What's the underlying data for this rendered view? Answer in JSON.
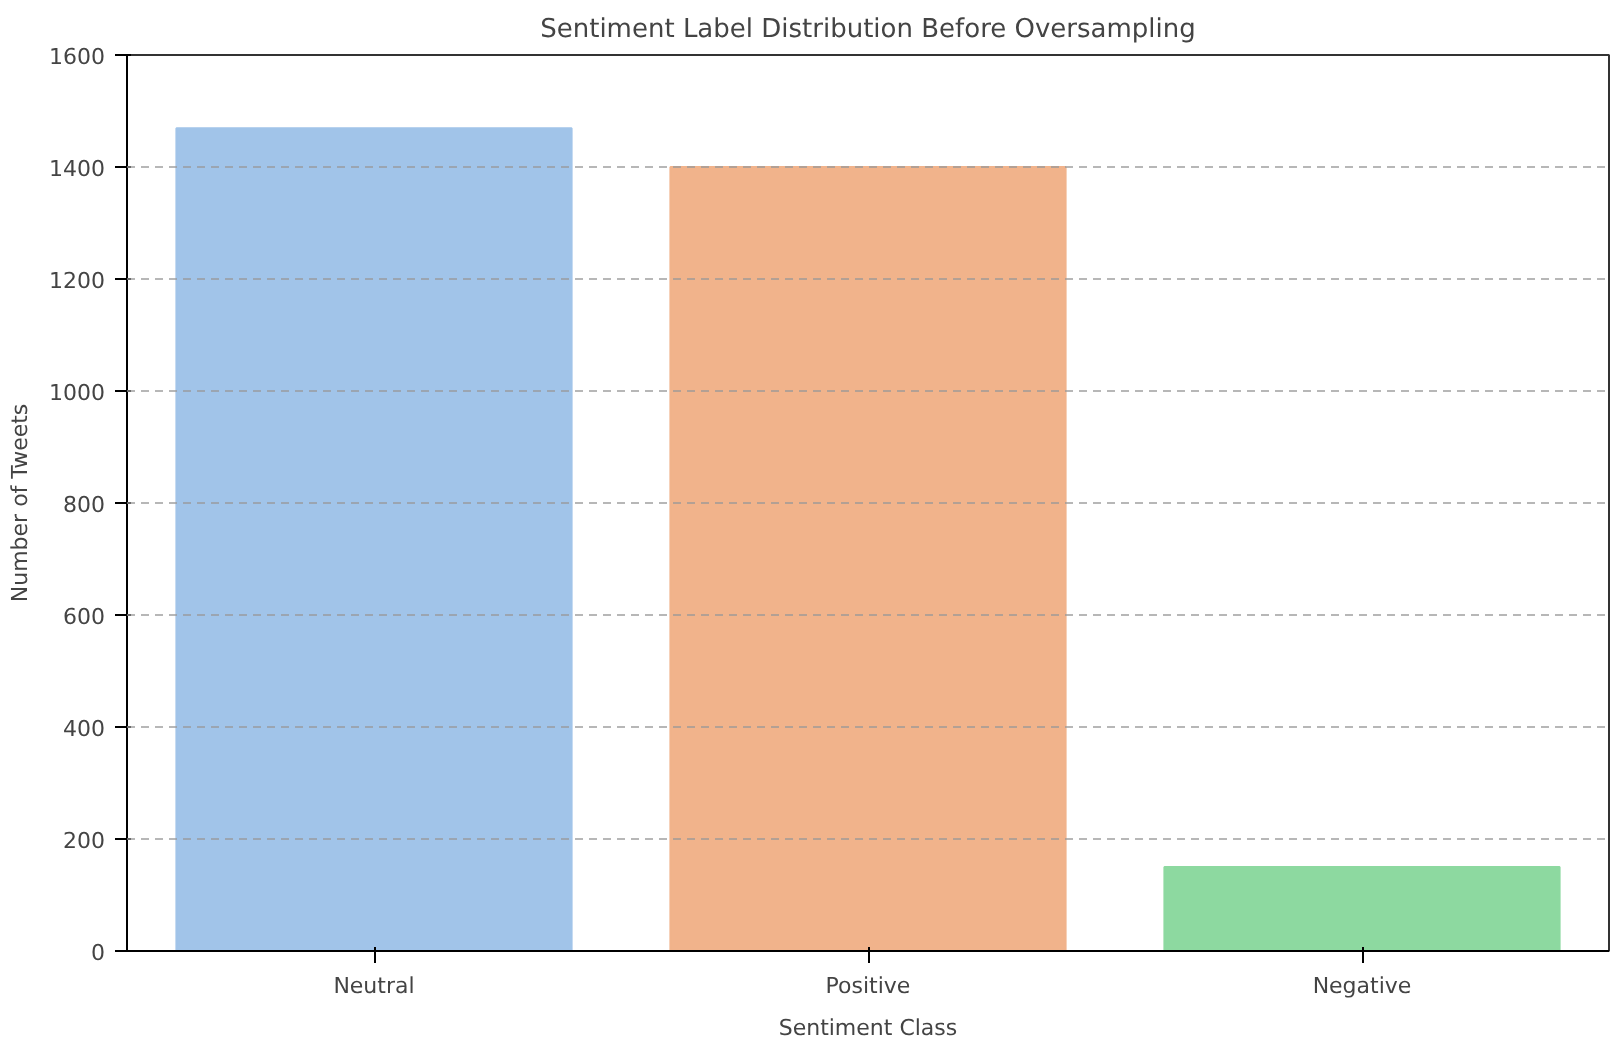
{
  "chart_data": {
    "type": "bar",
    "title": "Sentiment Label Distribution Before Oversampling",
    "xlabel": "Sentiment Class",
    "ylabel": "Number of Tweets",
    "categories": [
      "Neutral",
      "Positive",
      "Negative"
    ],
    "values": [
      1469,
      1400,
      150
    ],
    "colors": [
      "#a1c4e9",
      "#f1b38b",
      "#8dd9a0"
    ],
    "ylim": [
      0,
      1600
    ],
    "yticks": [
      0,
      200,
      400,
      600,
      800,
      1000,
      1200,
      1400,
      1600
    ],
    "grid": "y"
  }
}
